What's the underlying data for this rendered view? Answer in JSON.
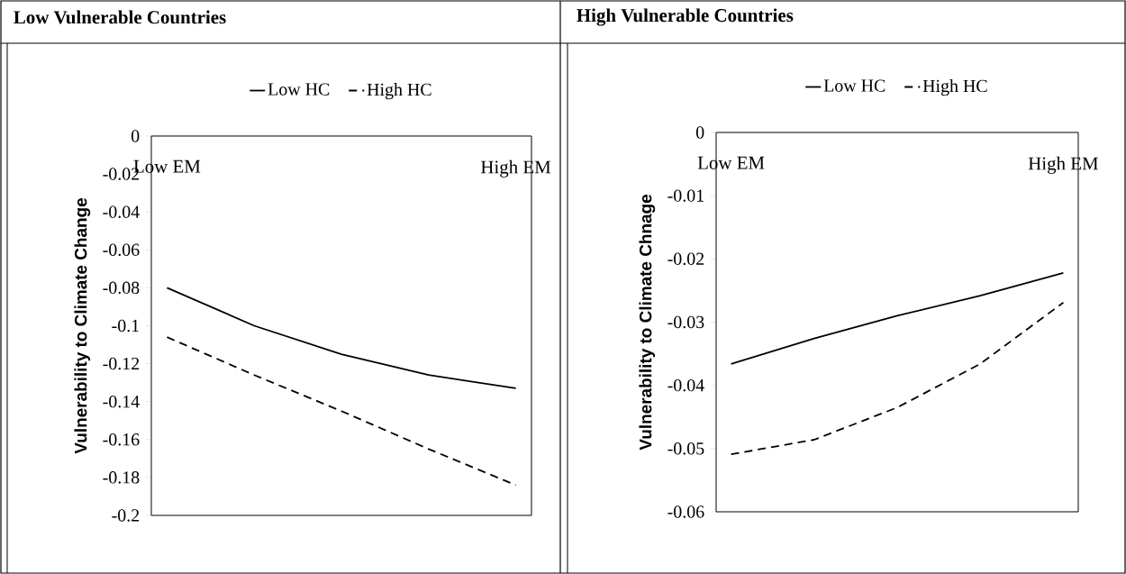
{
  "chart_data": [
    {
      "type": "line",
      "title": "Low Vulnerable Countries",
      "ylabel": "Vulnerability to Climate Change",
      "categories": [
        "Low EM",
        null,
        null,
        null,
        "High EM"
      ],
      "series": [
        {
          "name": "Low HC",
          "color": "#000000",
          "line_style": "solid",
          "values": [
            -0.08,
            -0.1,
            -0.115,
            -0.126,
            -0.133
          ]
        },
        {
          "name": "High HC",
          "color": "#000000",
          "line_style": "dashed",
          "values": [
            -0.106,
            -0.126,
            -0.145,
            -0.165,
            -0.184
          ]
        }
      ],
      "ylim": [
        -0.2,
        0
      ],
      "yticks": [
        {
          "value": 0,
          "label": "0"
        },
        {
          "value": -0.02,
          "label": "-0.02"
        },
        {
          "value": -0.04,
          "label": "-0.04"
        },
        {
          "value": -0.06,
          "label": "-0.06"
        },
        {
          "value": -0.08,
          "label": "-0.08"
        },
        {
          "value": -0.1,
          "label": "-0.1"
        },
        {
          "value": -0.12,
          "label": "-0.12"
        },
        {
          "value": -0.14,
          "label": "-0.14"
        },
        {
          "value": -0.16,
          "label": "-0.16"
        },
        {
          "value": -0.18,
          "label": "-0.18"
        },
        {
          "value": -0.2,
          "label": "-0.2"
        }
      ],
      "legend": "top",
      "grid": false,
      "marker": "none"
    },
    {
      "type": "line",
      "title": "High Vulnerable Countries",
      "ylabel": "Vulnerability to Climate Chnage",
      "categories": [
        "Low EM",
        null,
        null,
        null,
        "High EM"
      ],
      "series": [
        {
          "name": "Low HC",
          "color": "#000000",
          "line_style": "solid",
          "values": [
            -0.0366,
            -0.0326,
            -0.029,
            -0.0258,
            -0.0222
          ]
        },
        {
          "name": "High HC",
          "color": "#000000",
          "line_style": "dashed",
          "values": [
            -0.0509,
            -0.0486,
            -0.0435,
            -0.0366,
            -0.0269
          ]
        }
      ],
      "ylim": [
        -0.06,
        0
      ],
      "yticks": [
        {
          "value": 0,
          "label": "0"
        },
        {
          "value": -0.01,
          "label": "-0.01"
        },
        {
          "value": -0.02,
          "label": "-0.02"
        },
        {
          "value": -0.03,
          "label": "-0.03"
        },
        {
          "value": -0.04,
          "label": "-0.04"
        },
        {
          "value": -0.05,
          "label": "-0.05"
        },
        {
          "value": -0.06,
          "label": "-0.06"
        }
      ],
      "legend": "top",
      "grid": false,
      "marker": "none"
    }
  ]
}
